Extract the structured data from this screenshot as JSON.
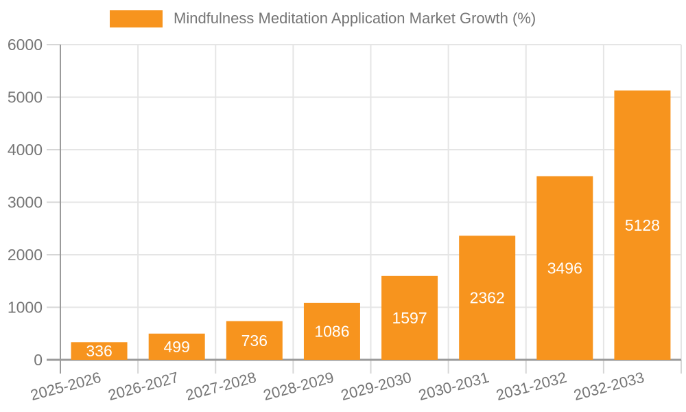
{
  "chart_data": {
    "type": "bar",
    "title": "Mindfulness Meditation Application Market Growth (%)",
    "legend": {
      "position": "top",
      "entries": [
        "Mindfulness Meditation Application Market Growth (%)"
      ]
    },
    "categories": [
      "2025-2026",
      "2026-2027",
      "2027-2028",
      "2028-2029",
      "2029-2030",
      "2030-2031",
      "2031-2032",
      "2032-2033"
    ],
    "values": [
      336,
      499,
      736,
      1086,
      1597,
      2362,
      3496,
      5128
    ],
    "xlabel": "",
    "ylabel": "",
    "ylim": [
      0,
      6000
    ],
    "yticks": [
      0,
      1000,
      2000,
      3000,
      4000,
      5000,
      6000
    ],
    "grid": "on",
    "bar_value_labels_inside": true,
    "colors": {
      "bar": "#F7941E",
      "bar_value_text": "#FFFFFF",
      "axis_line": "#9B9B9B",
      "grid_line": "#E5E5E5",
      "tick_line": "#D6D6D6",
      "tick_text": "#757575",
      "title_text": "#757575",
      "background": "#FFFFFF"
    }
  }
}
